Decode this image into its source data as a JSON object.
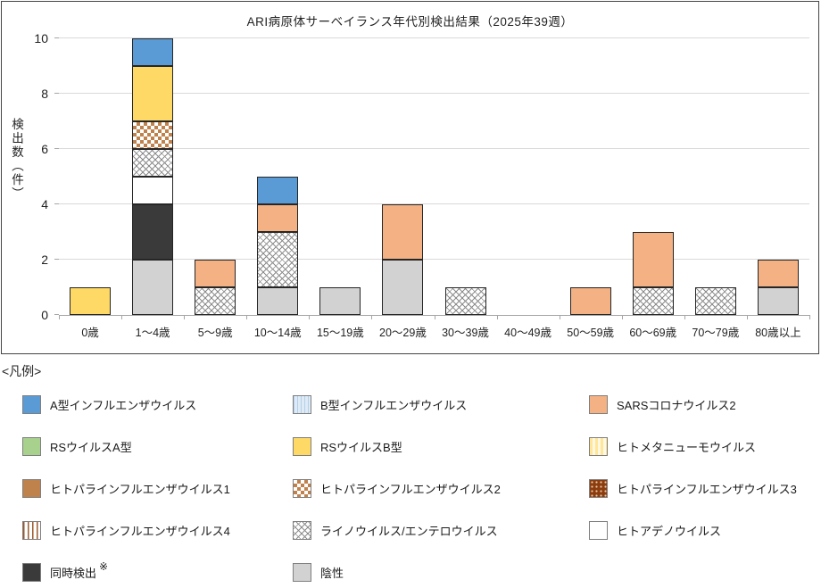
{
  "legend": {
    "header": "<凡例>",
    "note_mark": "※"
  },
  "chart_data": {
    "type": "bar",
    "stacked": true,
    "stack_order": "reverse-legend (first legend series on top)",
    "title": "ARI病原体サーベイランス年代別検出結果（2025年39週）",
    "xlabel": "",
    "ylabel": "検出数（件）",
    "ylim": [
      0,
      10
    ],
    "yticks": [
      0,
      2,
      4,
      6,
      8,
      10
    ],
    "grid": "horizontal",
    "legend_position": "below",
    "categories": [
      "0歳",
      "1～4歳",
      "5～9歳",
      "10～14歳",
      "15～19歳",
      "20～29歳",
      "30～39歳",
      "40～49歳",
      "50～59歳",
      "60～69歳",
      "70～79歳",
      "80歳以上"
    ],
    "series": [
      {
        "name": "A型インフルエンザウイルス",
        "pattern": "solid",
        "color": "#5B9BD5",
        "values": [
          0,
          1,
          0,
          1,
          0,
          0,
          0,
          0,
          0,
          0,
          0,
          0
        ]
      },
      {
        "name": "B型インフルエンザウイルス",
        "pattern": "vstripes",
        "color": "#B4CFE8",
        "color2": "#DEEBF7",
        "stripe": [
          1,
          4
        ],
        "values": [
          0,
          0,
          0,
          0,
          0,
          0,
          0,
          0,
          0,
          0,
          0,
          0
        ]
      },
      {
        "name": "SARSコロナウイルス2",
        "pattern": "solid",
        "color": "#F4B183",
        "values": [
          0,
          0,
          1,
          1,
          0,
          2,
          0,
          0,
          1,
          2,
          0,
          1
        ]
      },
      {
        "name": "RSウイルスA型",
        "pattern": "solid",
        "color": "#A9D18E",
        "values": [
          0,
          0,
          0,
          0,
          0,
          0,
          0,
          0,
          0,
          0,
          0,
          0
        ]
      },
      {
        "name": "RSウイルスB型",
        "pattern": "solid",
        "color": "#FFD966",
        "values": [
          1,
          2,
          0,
          0,
          0,
          0,
          0,
          0,
          0,
          0,
          0,
          0
        ]
      },
      {
        "name": "ヒトメタニューモウイルス",
        "pattern": "vstripes",
        "color": "#FFE699",
        "color2": "#FFF9E3",
        "stripe": [
          3,
          6
        ],
        "values": [
          0,
          0,
          0,
          0,
          0,
          0,
          0,
          0,
          0,
          0,
          0,
          0
        ]
      },
      {
        "name": "ヒトパラインフルエンザウイルス1",
        "pattern": "solid",
        "color": "#C0824D",
        "values": [
          0,
          0,
          0,
          0,
          0,
          0,
          0,
          0,
          0,
          0,
          0,
          0
        ]
      },
      {
        "name": "ヒトパラインフルエンザウイルス2",
        "pattern": "check",
        "color": "#C0824D",
        "color2": "#FFFFFF",
        "values": [
          0,
          1,
          0,
          0,
          0,
          0,
          0,
          0,
          0,
          0,
          0,
          0
        ]
      },
      {
        "name": "ヒトパラインフルエンザウイルス3",
        "pattern": "dots",
        "color": "#8C3D0F",
        "color2": "#E9C9A6",
        "values": [
          0,
          0,
          0,
          0,
          0,
          0,
          0,
          0,
          0,
          0,
          0,
          0
        ]
      },
      {
        "name": "ヒトパラインフルエンザウイルス4",
        "pattern": "vstripes",
        "color": "#9C5A2D",
        "color2": "#FFFFFF",
        "stripe": [
          1.5,
          5
        ],
        "values": [
          0,
          0,
          0,
          0,
          0,
          0,
          0,
          0,
          0,
          0,
          0,
          0
        ]
      },
      {
        "name": "ライノウイルス/エンテロウイルス",
        "pattern": "diamond",
        "color": "#8C8C8C",
        "color2": "#FFFFFF",
        "values": [
          0,
          1,
          1,
          2,
          0,
          0,
          1,
          0,
          0,
          1,
          1,
          0
        ]
      },
      {
        "name": "ヒトアデノウイルス",
        "pattern": "solid",
        "color": "#FFFFFF",
        "values": [
          0,
          1,
          0,
          0,
          0,
          0,
          0,
          0,
          0,
          0,
          0,
          0
        ]
      },
      {
        "name": "同時検出",
        "pattern": "solid",
        "color": "#3A3A3A",
        "note": "※",
        "values": [
          0,
          2,
          0,
          0,
          0,
          0,
          0,
          0,
          0,
          0,
          0,
          0
        ]
      },
      {
        "name": "陰性",
        "pattern": "solid",
        "color": "#D2D2D2",
        "values": [
          0,
          2,
          0,
          1,
          1,
          2,
          0,
          0,
          0,
          0,
          0,
          1
        ]
      }
    ]
  }
}
